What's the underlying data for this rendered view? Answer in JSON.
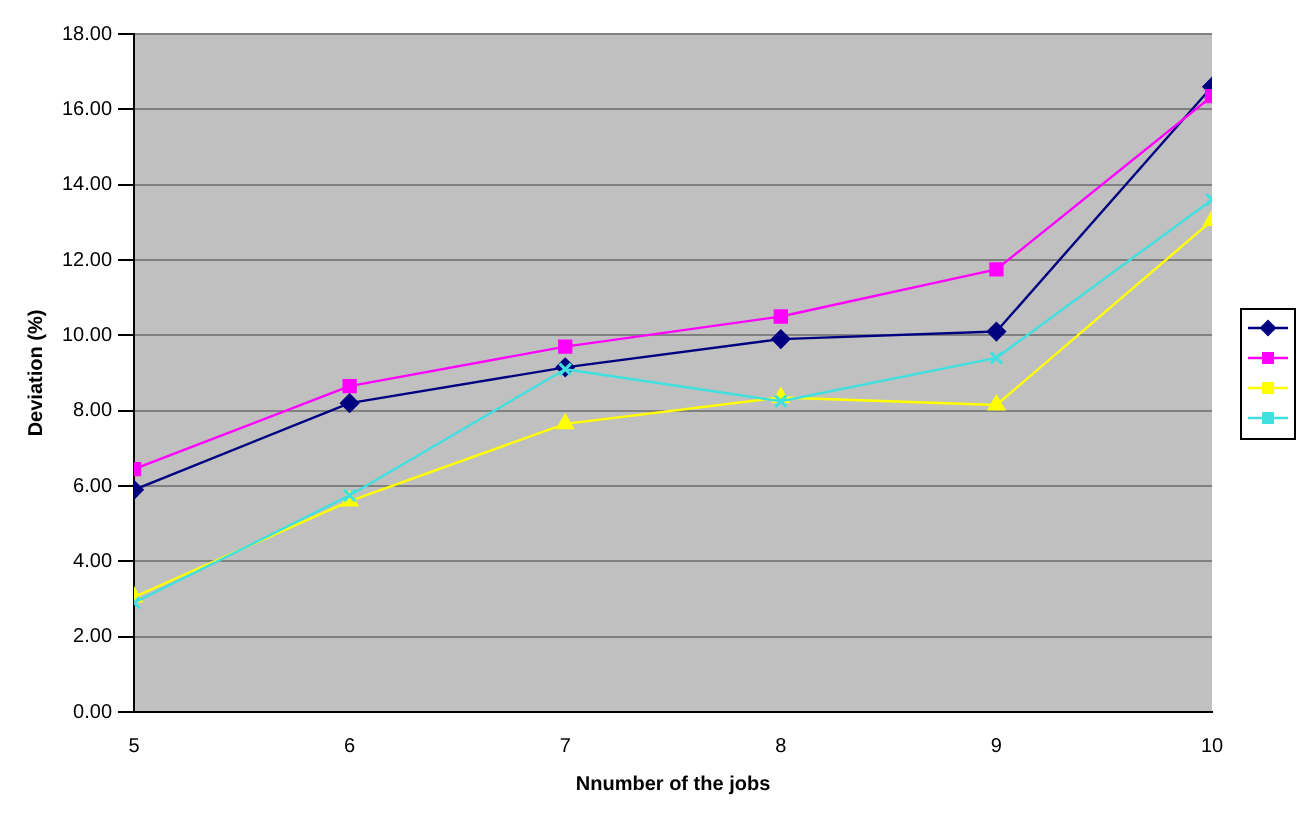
{
  "chart_data": {
    "type": "line",
    "xlabel": "Nnumber of the jobs",
    "ylabel": "Deviation (%)",
    "x": [
      5,
      6,
      7,
      8,
      9,
      10
    ],
    "series": [
      {
        "color": "#000080",
        "marker": "diamond",
        "values": [
          5.9,
          8.2,
          9.15,
          9.9,
          10.1,
          16.6
        ]
      },
      {
        "color": "#ff00ff",
        "marker": "square",
        "values": [
          6.45,
          8.65,
          9.7,
          10.5,
          11.75,
          16.35
        ]
      },
      {
        "color": "#ffff00",
        "marker": "triangle",
        "values": [
          3.05,
          5.6,
          7.65,
          8.35,
          8.15,
          13.05
        ]
      },
      {
        "color": "#40e0e0",
        "marker": "cross",
        "values": [
          2.9,
          5.75,
          9.1,
          8.25,
          9.4,
          13.6
        ]
      }
    ],
    "xlim": [
      5,
      10
    ],
    "xticks": [
      5,
      6,
      7,
      8,
      9,
      10
    ],
    "ylim": [
      0,
      18
    ],
    "yticks": [
      {
        "value": 0,
        "label": "0.00"
      },
      {
        "value": 2,
        "label": "2.00"
      },
      {
        "value": 4,
        "label": "4.00"
      },
      {
        "value": 6,
        "label": "6.00"
      },
      {
        "value": 8,
        "label": "8.00"
      },
      {
        "value": 10,
        "label": "10.00"
      },
      {
        "value": 12,
        "label": "12.00"
      },
      {
        "value": 14,
        "label": "14.00"
      },
      {
        "value": 16,
        "label": "16.00"
      },
      {
        "value": 18,
        "label": "18.00"
      }
    ],
    "grid": "y",
    "line_style": "solid"
  }
}
